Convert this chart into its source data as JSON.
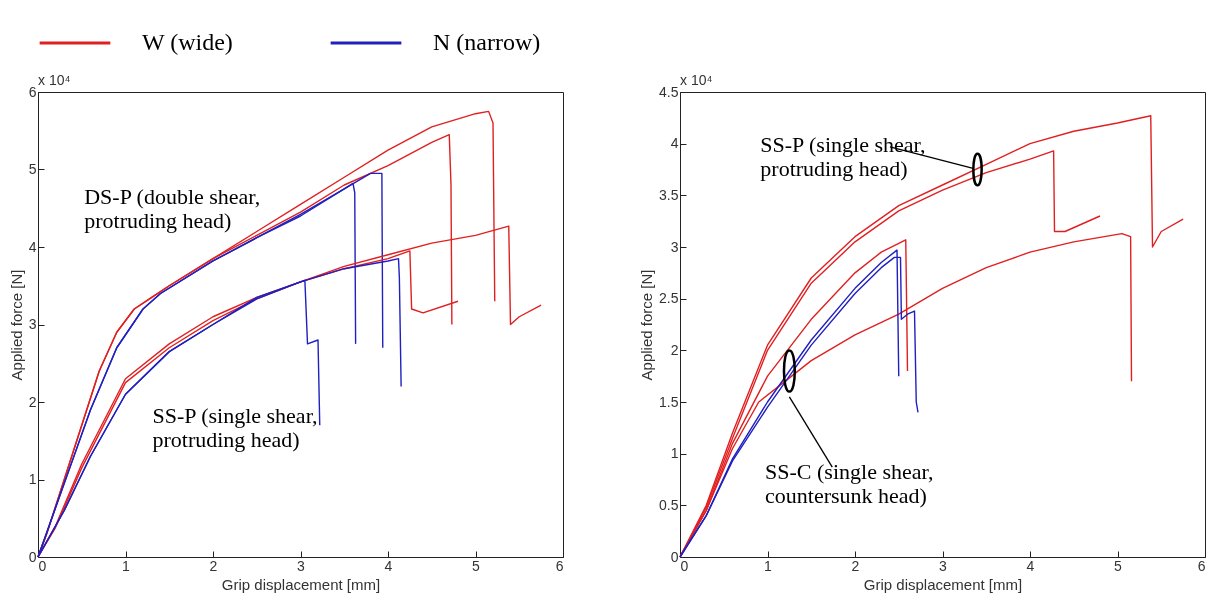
{
  "chart_data": [
    {
      "type": "line",
      "xlabel": "Grip displacement [mm]",
      "ylabel": "Applied force [N]",
      "xlim": [
        0,
        6
      ],
      "xticks": [
        0,
        1,
        2,
        3,
        4,
        5,
        6
      ],
      "ylim": [
        0,
        6
      ],
      "yticks": [
        0,
        1,
        2,
        3,
        4,
        5,
        6
      ],
      "legend": "top",
      "annotations": [
        "x 10⁴",
        "DS-P (double shear,\nprotruding head)",
        "SS-P (single shear,\nprotruding head)"
      ],
      "series": [
        {
          "name": "W (wide)",
          "color": "#e02020",
          "x": [
            0,
            0.1,
            0.3,
            0.5,
            0.7,
            0.9,
            1.1,
            1.3,
            1.5,
            2,
            2.5,
            3,
            3.5,
            4,
            4.5,
            5,
            5.15,
            5.2,
            5.22
          ],
          "values": [
            0,
            0.3,
            1.0,
            1.7,
            2.4,
            2.9,
            3.2,
            3.35,
            3.5,
            3.85,
            4.2,
            4.55,
            4.9,
            5.25,
            5.55,
            5.72,
            5.75,
            5.6,
            3.3
          ]
        },
        {
          "color": "#e02020",
          "x": [
            0,
            0.1,
            0.3,
            0.5,
            0.7,
            0.9,
            1.1,
            1.3,
            1.5,
            2,
            2.5,
            3,
            3.5,
            4,
            4.5,
            4.7,
            4.72,
            4.73
          ],
          "values": [
            0,
            0.3,
            1.0,
            1.7,
            2.4,
            2.9,
            3.2,
            3.35,
            3.5,
            3.85,
            4.15,
            4.45,
            4.8,
            5.05,
            5.35,
            5.45,
            4.8,
            3.0
          ]
        },
        {
          "name": "N (narrow)",
          "color": "#2020c0",
          "x": [
            0,
            0.3,
            0.6,
            0.9,
            1.2,
            1.4,
            2,
            2.5,
            3,
            3.5,
            3.6,
            3.62,
            3.63
          ],
          "values": [
            0,
            0.95,
            1.9,
            2.7,
            3.2,
            3.4,
            3.82,
            4.12,
            4.4,
            4.75,
            4.82,
            4.7,
            2.75
          ]
        },
        {
          "color": "#2020c0",
          "x": [
            0,
            0.3,
            0.6,
            0.9,
            1.2,
            1.4,
            2,
            2.5,
            3,
            3.5,
            3.8,
            3.93,
            3.94
          ],
          "values": [
            0,
            0.95,
            1.9,
            2.7,
            3.2,
            3.4,
            3.82,
            4.12,
            4.42,
            4.75,
            4.95,
            4.95,
            2.7
          ]
        },
        {
          "color": "#e02020",
          "x": [
            0,
            0.2,
            0.5,
            1,
            1.5,
            2,
            2.5,
            3,
            3.5,
            4,
            4.5,
            5,
            5.38,
            5.4,
            5.5,
            5.75
          ],
          "values": [
            0,
            0.4,
            1.2,
            2.3,
            2.75,
            3.1,
            3.35,
            3.55,
            3.75,
            3.9,
            4.05,
            4.15,
            4.27,
            3.0,
            3.1,
            3.25
          ]
        },
        {
          "color": "#e02020",
          "x": [
            0,
            0.2,
            0.5,
            1,
            1.5,
            2,
            2.5,
            3,
            3.5,
            4,
            4.25,
            4.27,
            4.4,
            4.8
          ],
          "values": [
            0,
            0.38,
            1.15,
            2.25,
            2.7,
            3.05,
            3.33,
            3.55,
            3.72,
            3.85,
            3.95,
            3.2,
            3.15,
            3.3
          ]
        },
        {
          "color": "#2020c0",
          "x": [
            0,
            0.3,
            0.6,
            1,
            1.5,
            2,
            2.5,
            3.05,
            3.08,
            3.2,
            3.22
          ],
          "values": [
            0,
            0.6,
            1.3,
            2.1,
            2.65,
            3.0,
            3.35,
            3.57,
            2.75,
            2.8,
            1.7
          ]
        },
        {
          "color": "#2020c0",
          "x": [
            0,
            0.3,
            0.6,
            1,
            1.5,
            2,
            2.5,
            3,
            3.5,
            4,
            4.12,
            4.13,
            4.15
          ],
          "values": [
            0,
            0.6,
            1.3,
            2.1,
            2.65,
            3.0,
            3.33,
            3.55,
            3.72,
            3.82,
            3.85,
            3.6,
            2.2
          ]
        }
      ]
    },
    {
      "type": "line",
      "xlabel": "Grip displacement [mm]",
      "ylabel": "Applied force [N]",
      "xlim": [
        0,
        6
      ],
      "xticks": [
        0,
        1,
        2,
        3,
        4,
        5,
        6
      ],
      "ylim": [
        0,
        4.5
      ],
      "yticks": [
        0,
        0.5,
        1,
        1.5,
        2,
        2.5,
        3,
        3.5,
        4,
        4.5
      ],
      "annotations": [
        "x 10⁴",
        {
          "text": "SS-P (single shear,\nprotruding head)",
          "x": 3.4,
          "y": 3.75
        },
        "SS-C (single shear,\ncountersunk head)"
      ],
      "series": [
        {
          "color": "#e02020",
          "x": [
            0,
            0.3,
            0.6,
            1,
            1.5,
            2,
            2.5,
            3,
            3.5,
            4,
            4.5,
            5,
            5.38,
            5.4,
            5.5,
            5.75
          ],
          "values": [
            0,
            0.5,
            1.2,
            2.05,
            2.7,
            3.1,
            3.4,
            3.6,
            3.8,
            4.0,
            4.12,
            4.2,
            4.27,
            3.0,
            3.15,
            3.27
          ]
        },
        {
          "color": "#e02020",
          "x": [
            0,
            0.3,
            0.6,
            1,
            1.5,
            2,
            2.5,
            3,
            3.5,
            4,
            4.27,
            4.28,
            4.4,
            4.8
          ],
          "values": [
            0,
            0.48,
            1.15,
            2.0,
            2.65,
            3.05,
            3.35,
            3.55,
            3.72,
            3.85,
            3.93,
            3.15,
            3.15,
            3.3
          ]
        },
        {
          "color": "#e02020",
          "x": [
            0,
            0.3,
            0.6,
            1,
            1.5,
            2,
            2.3,
            2.58,
            2.6
          ],
          "values": [
            0,
            0.45,
            1.1,
            1.75,
            2.3,
            2.75,
            2.95,
            3.07,
            1.8
          ]
        },
        {
          "color": "#e02020",
          "x": [
            0,
            0.3,
            0.6,
            0.9,
            1.2,
            1.5,
            2,
            2.5,
            3,
            3.5,
            4,
            4.5,
            5.05,
            5.15,
            5.16
          ],
          "values": [
            0,
            0.45,
            1.05,
            1.5,
            1.7,
            1.9,
            2.15,
            2.35,
            2.6,
            2.8,
            2.95,
            3.05,
            3.13,
            3.1,
            1.7
          ]
        },
        {
          "color": "#2020c0",
          "x": [
            0,
            0.3,
            0.6,
            1,
            1.5,
            2,
            2.3,
            2.48,
            2.5
          ],
          "values": [
            0,
            0.4,
            0.95,
            1.5,
            2.1,
            2.6,
            2.85,
            2.97,
            1.75
          ]
        },
        {
          "color": "#2020c0",
          "x": [
            0,
            0.3,
            0.6,
            1,
            1.5,
            2,
            2.3,
            2.45,
            2.52,
            2.53,
            2.6,
            2.68,
            2.7,
            2.72
          ],
          "values": [
            0,
            0.4,
            0.93,
            1.45,
            2.05,
            2.55,
            2.8,
            2.9,
            2.9,
            2.3,
            2.35,
            2.38,
            1.5,
            1.4
          ]
        }
      ]
    }
  ]
}
